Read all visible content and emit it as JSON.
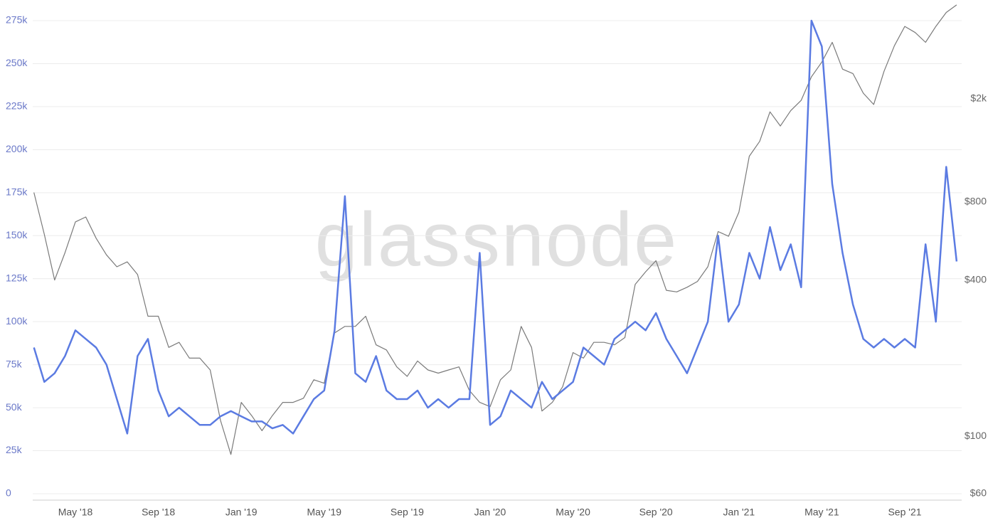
{
  "chart_data": {
    "type": "line",
    "watermark": "glassnode",
    "categories": [
      null,
      null,
      null,
      null,
      "May '18",
      null,
      null,
      null,
      null,
      null,
      null,
      null,
      "Sep '18",
      null,
      null,
      null,
      null,
      null,
      null,
      null,
      "Jan '19",
      null,
      null,
      null,
      null,
      null,
      null,
      null,
      "May '19",
      null,
      null,
      null,
      null,
      null,
      null,
      null,
      "Sep '19",
      null,
      null,
      null,
      null,
      null,
      null,
      null,
      "Jan '20",
      null,
      null,
      null,
      null,
      null,
      null,
      null,
      "May '20",
      null,
      null,
      null,
      null,
      null,
      null,
      null,
      "Sep '20",
      null,
      null,
      null,
      null,
      null,
      null,
      null,
      "Jan '21",
      null,
      null,
      null,
      null,
      null,
      null,
      null,
      "May '21",
      null,
      null,
      null,
      null,
      null,
      null,
      null,
      "Sep '21",
      null,
      null,
      null,
      null,
      null
    ],
    "series": [
      {
        "color": "#5b7be2",
        "axis": "y",
        "values": [
          85000,
          65000,
          70000,
          80000,
          95000,
          90000,
          85000,
          75000,
          55000,
          35000,
          80000,
          90000,
          60000,
          45000,
          50000,
          45000,
          40000,
          40000,
          45000,
          48000,
          45000,
          42000,
          42000,
          38000,
          40000,
          35000,
          45000,
          55000,
          60000,
          95000,
          173000,
          70000,
          65000,
          80000,
          60000,
          55000,
          55000,
          60000,
          50000,
          55000,
          50000,
          55000,
          55000,
          140000,
          40000,
          45000,
          60000,
          55000,
          50000,
          65000,
          55000,
          60000,
          65000,
          85000,
          80000,
          75000,
          90000,
          95000,
          100000,
          95000,
          105000,
          90000,
          80000,
          70000,
          85000,
          100000,
          150000,
          100000,
          110000,
          140000,
          125000,
          155000,
          130000,
          145000,
          120000,
          275000,
          260000,
          180000,
          140000,
          110000,
          90000,
          85000,
          90000,
          85000,
          90000,
          85000,
          145000,
          100000,
          190000,
          135000
        ]
      },
      {
        "color": "#7a7a7a",
        "axis": "y2",
        "values": [
          870,
          600,
          400,
          510,
          670,
          700,
          580,
          500,
          450,
          470,
          420,
          290,
          290,
          220,
          230,
          200,
          200,
          180,
          115,
          85,
          135,
          120,
          105,
          120,
          135,
          135,
          140,
          165,
          160,
          250,
          265,
          265,
          290,
          225,
          215,
          185,
          170,
          195,
          180,
          175,
          180,
          185,
          150,
          135,
          130,
          165,
          180,
          265,
          220,
          125,
          135,
          155,
          210,
          200,
          230,
          230,
          225,
          240,
          385,
          430,
          475,
          365,
          360,
          375,
          395,
          450,
          615,
          590,
          730,
          1200,
          1370,
          1780,
          1570,
          1800,
          1970,
          2430,
          2770,
          3300,
          2600,
          2500,
          2100,
          1900,
          2550,
          3200,
          3800,
          3600,
          3300,
          3800,
          4300,
          4600
        ]
      }
    ],
    "ylim": [
      0,
      275000
    ],
    "yticks": [
      {
        "value": 0,
        "label": "0"
      },
      {
        "value": 25000,
        "label": "25k"
      },
      {
        "value": 50000,
        "label": "50k"
      },
      {
        "value": 75000,
        "label": "75k"
      },
      {
        "value": 100000,
        "label": "100k"
      },
      {
        "value": 125000,
        "label": "125k"
      },
      {
        "value": 150000,
        "label": "150k"
      },
      {
        "value": 175000,
        "label": "175k"
      },
      {
        "value": 200000,
        "label": "200k"
      },
      {
        "value": 225000,
        "label": "225k"
      },
      {
        "value": 250000,
        "label": "250k"
      },
      {
        "value": 275000,
        "label": "275k"
      }
    ],
    "y2lim": [
      60,
      4000
    ],
    "y2log": true,
    "y2ticks": [
      {
        "value": 60,
        "label": "$60"
      },
      {
        "value": 100,
        "label": "$100"
      },
      {
        "value": 400,
        "label": "$400"
      },
      {
        "value": 800,
        "label": "$800"
      },
      {
        "value": 2000,
        "label": "$2k"
      }
    ],
    "grid": true
  }
}
